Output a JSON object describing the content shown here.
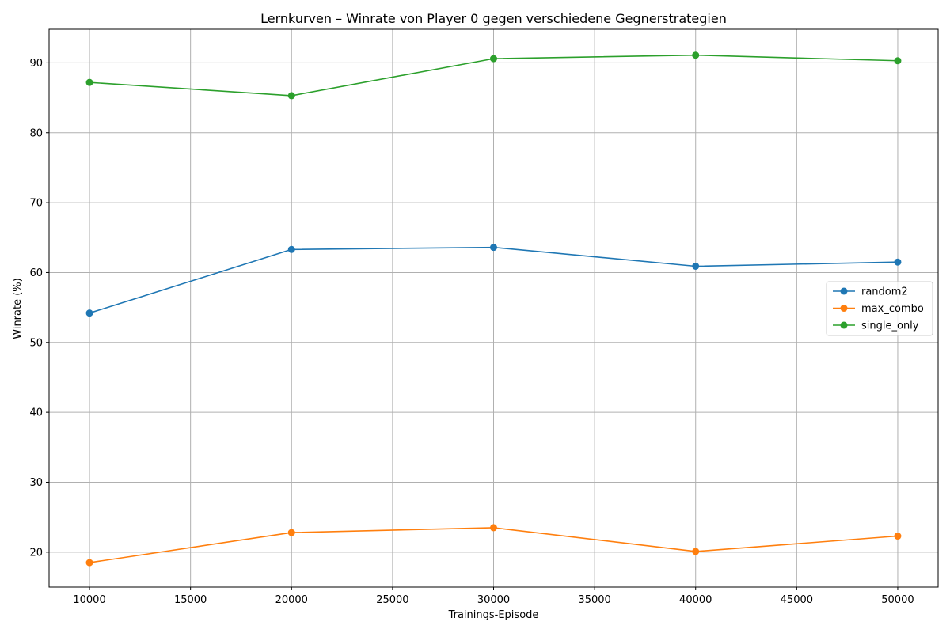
{
  "chart_data": {
    "type": "line",
    "title": "Lernkurven – Winrate von Player 0 gegen verschiedene Gegnerstrategien",
    "xlabel": "Trainings-Episode",
    "ylabel": "Winrate (%)",
    "x": [
      10000,
      20000,
      30000,
      40000,
      50000
    ],
    "xlim": [
      8000,
      52000
    ],
    "ylim": [
      15,
      94.8
    ],
    "xticks": [
      10000,
      15000,
      20000,
      25000,
      30000,
      35000,
      40000,
      45000,
      50000
    ],
    "yticks": [
      20,
      30,
      40,
      50,
      60,
      70,
      80,
      90
    ],
    "grid": true,
    "legend_position": "center-right",
    "series": [
      {
        "name": "random2",
        "color": "#1f77b4",
        "values": [
          54.2,
          63.3,
          63.6,
          60.9,
          61.5
        ]
      },
      {
        "name": "max_combo",
        "color": "#ff7f0e",
        "values": [
          18.5,
          22.8,
          23.5,
          20.1,
          22.3
        ]
      },
      {
        "name": "single_only",
        "color": "#2ca02c",
        "values": [
          87.2,
          85.3,
          90.6,
          91.1,
          90.3
        ]
      }
    ]
  }
}
